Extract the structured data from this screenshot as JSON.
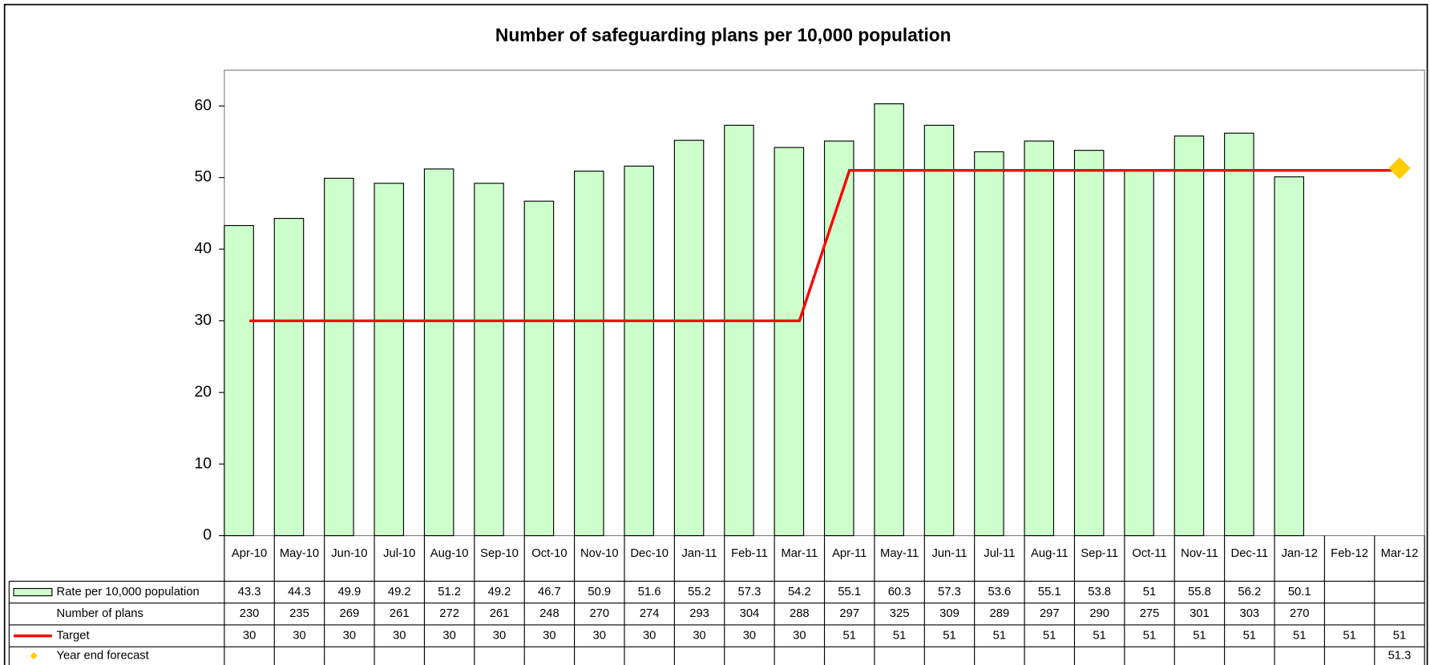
{
  "chart_data": {
    "type": "bar",
    "title": "Number of safeguarding plans per 10,000 population",
    "categories": [
      "Apr-10",
      "May-10",
      "Jun-10",
      "Jul-10",
      "Aug-10",
      "Sep-10",
      "Oct-10",
      "Nov-10",
      "Dec-10",
      "Jan-11",
      "Feb-11",
      "Mar-11",
      "Apr-11",
      "May-11",
      "Jun-11",
      "Jul-11",
      "Aug-11",
      "Sep-11",
      "Oct-11",
      "Nov-11",
      "Dec-11",
      "Jan-12",
      "Feb-12",
      "Mar-12"
    ],
    "series": [
      {
        "name": "Rate per 10,000 population",
        "type": "bar",
        "color": "#ccffcc",
        "values": [
          43.3,
          44.3,
          49.9,
          49.2,
          51.2,
          49.2,
          46.7,
          50.9,
          51.6,
          55.2,
          57.3,
          54.2,
          55.1,
          60.3,
          57.3,
          53.6,
          55.1,
          53.8,
          51,
          55.8,
          56.2,
          50.1,
          null,
          null
        ]
      },
      {
        "name": "Number of plans",
        "values": [
          230,
          235,
          269,
          261,
          272,
          261,
          248,
          270,
          274,
          293,
          304,
          288,
          297,
          325,
          309,
          289,
          297,
          290,
          275,
          301,
          303,
          270,
          null,
          null
        ]
      },
      {
        "name": "Target",
        "type": "line",
        "color": "#ff0000",
        "values": [
          30,
          30,
          30,
          30,
          30,
          30,
          30,
          30,
          30,
          30,
          30,
          30,
          51,
          51,
          51,
          51,
          51,
          51,
          51,
          51,
          51,
          51,
          51,
          51
        ]
      },
      {
        "name": "Year end forecast",
        "type": "scatter",
        "color": "#ffcc00",
        "values": [
          null,
          null,
          null,
          null,
          null,
          null,
          null,
          null,
          null,
          null,
          null,
          null,
          null,
          null,
          null,
          null,
          null,
          null,
          null,
          null,
          null,
          null,
          null,
          51.3
        ]
      }
    ],
    "ylim": [
      0,
      65
    ],
    "yticks": [
      0,
      10,
      20,
      30,
      40,
      50,
      60
    ]
  }
}
